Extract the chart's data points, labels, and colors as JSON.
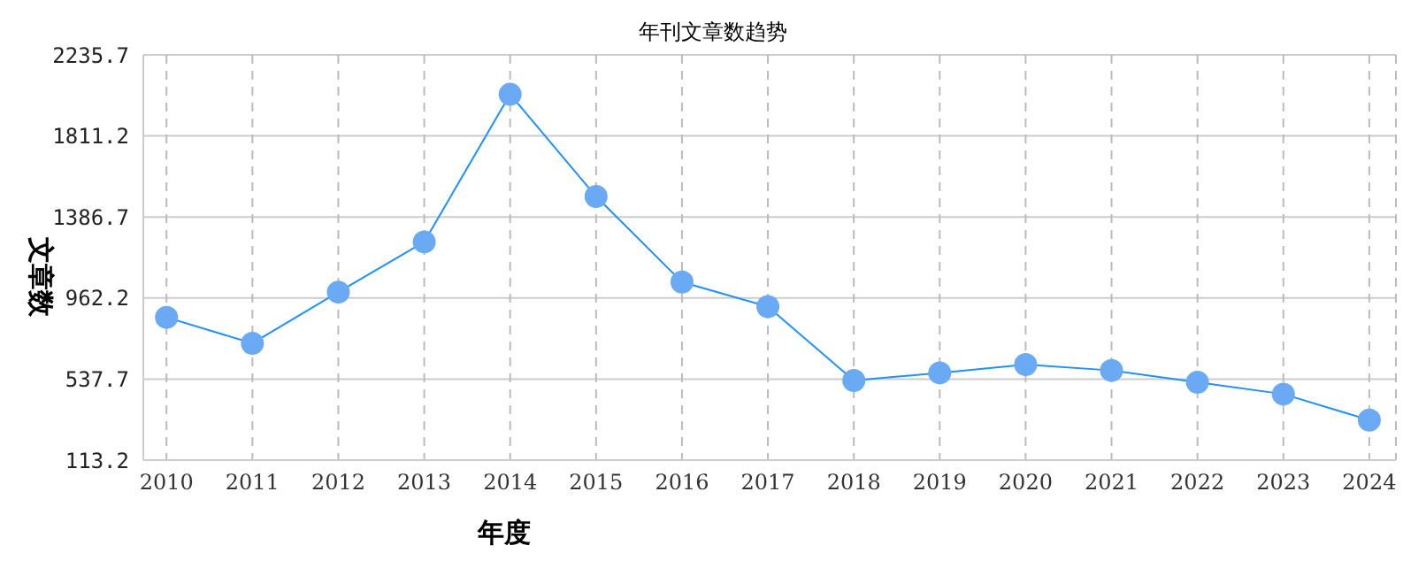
{
  "chart_data": {
    "type": "line",
    "title": "年刊文章数趋势",
    "xlabel": "年度",
    "ylabel": "文章数",
    "categories": [
      "2010",
      "2011",
      "2012",
      "2013",
      "2014",
      "2015",
      "2016",
      "2017",
      "2018",
      "2019",
      "2020",
      "2021",
      "2022",
      "2023",
      "2024"
    ],
    "series": [
      {
        "color": "#1e90ff",
        "values": [
          861,
          725,
          993,
          1256,
          2029,
          1494,
          1046,
          917,
          530,
          570,
          614,
          583,
          521,
          459,
          323
        ]
      }
    ],
    "ylim": [
      113.2,
      2235.7
    ],
    "yticks": [
      113.2,
      537.7,
      962.2,
      1386.7,
      1811.2,
      2235.7
    ],
    "grid": true,
    "marker": "circle",
    "legend": false
  }
}
